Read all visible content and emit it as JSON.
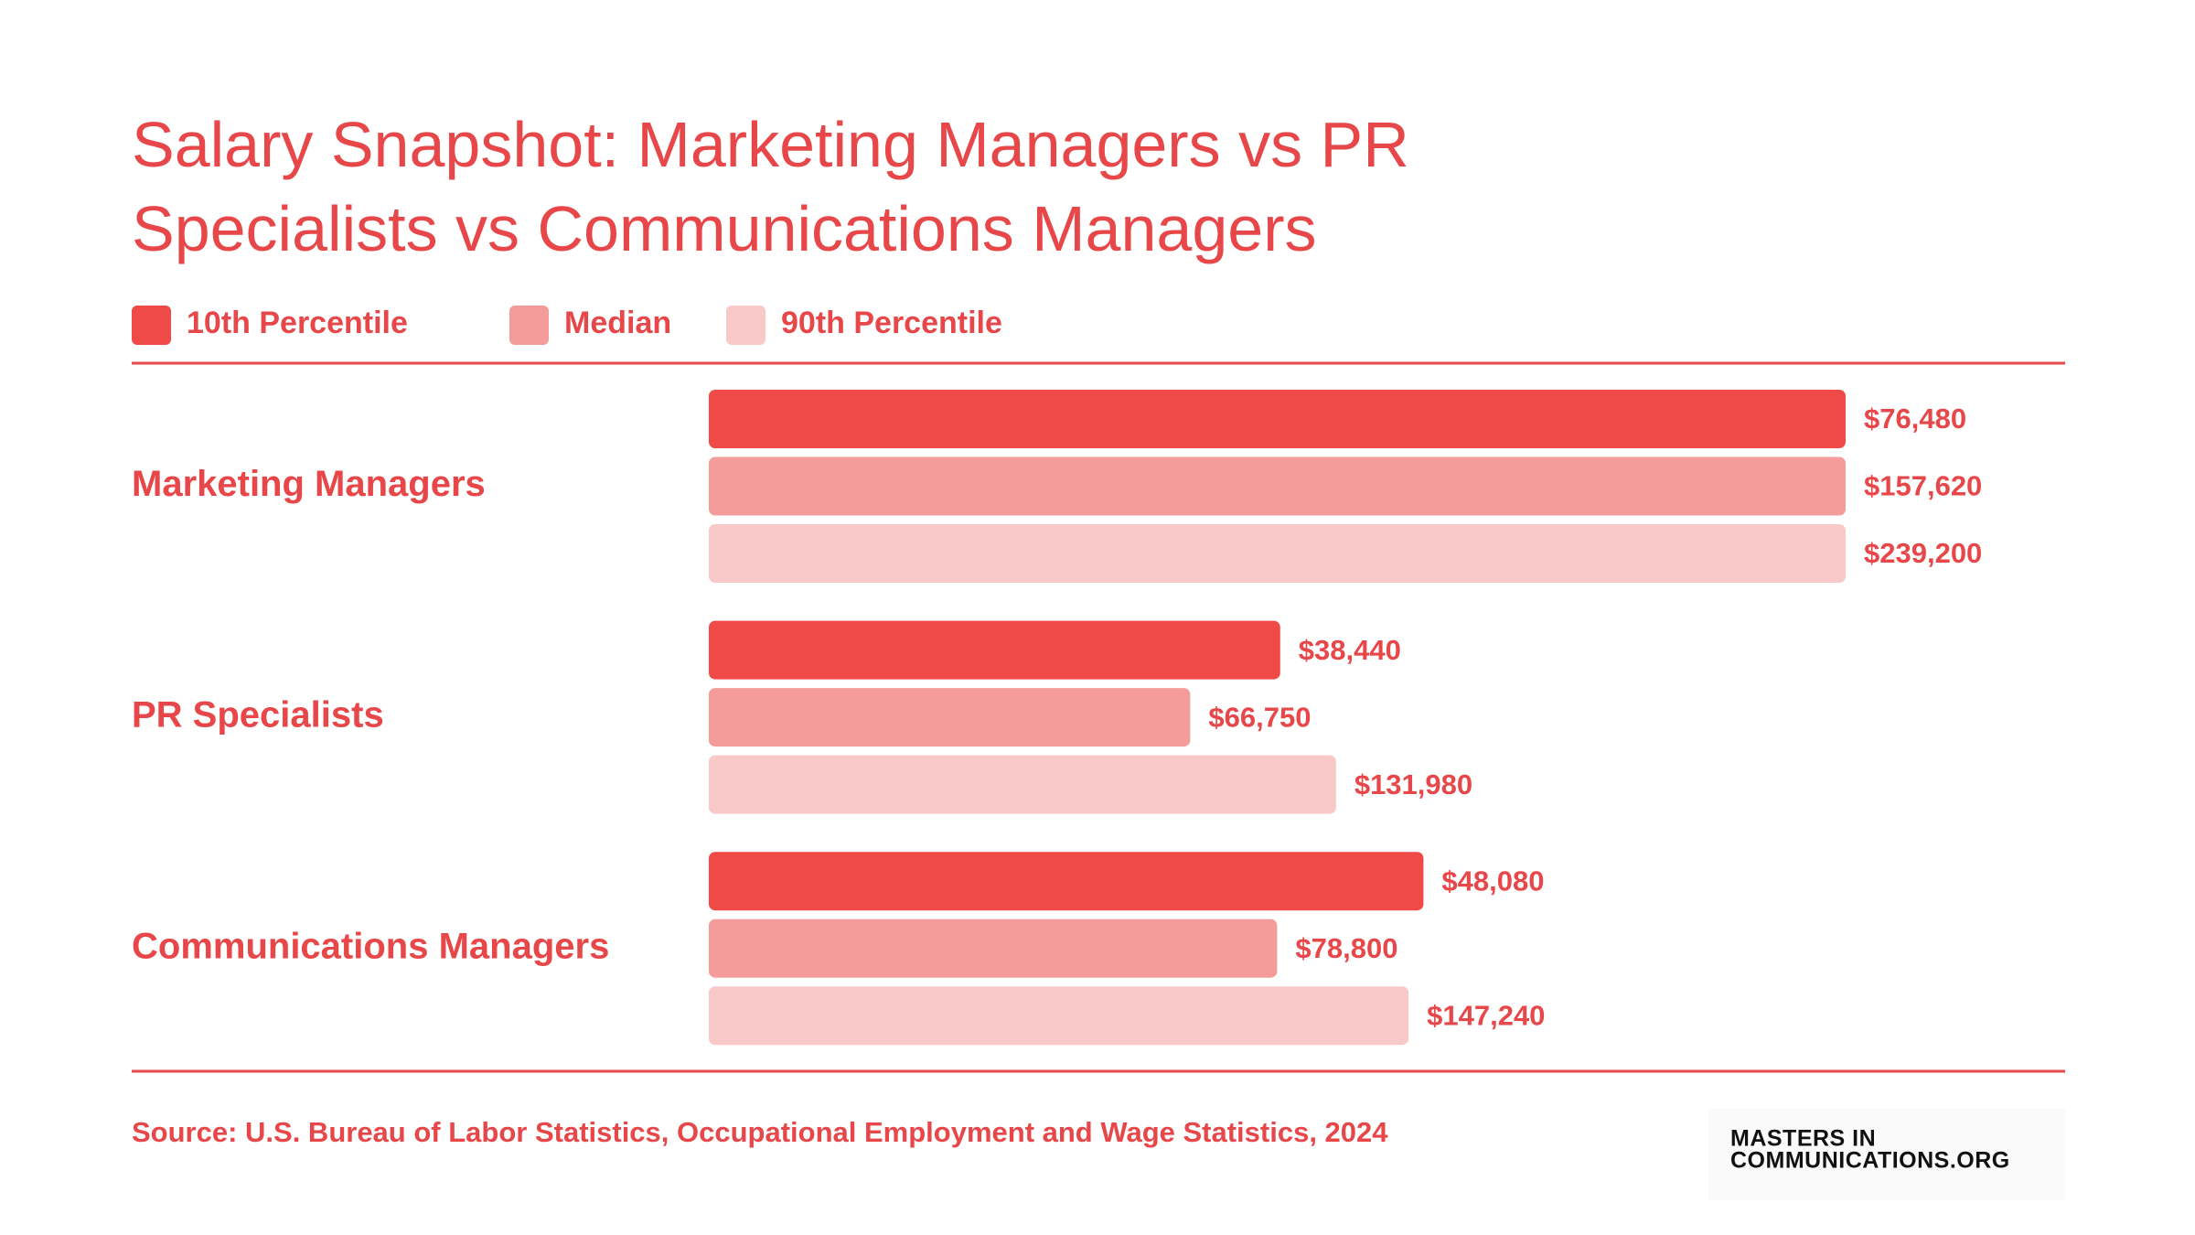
{
  "chart_data": {
    "type": "bar",
    "orientation": "horizontal",
    "title": "Salary Snapshot: Marketing Managers vs PR Specialists vs Communications Managers",
    "categories": [
      "Marketing Managers",
      "PR Specialists",
      "Communications Managers"
    ],
    "series": [
      {
        "name": "10th Percentile",
        "color": "#ef4a48",
        "values": [
          76480,
          38440,
          48080
        ],
        "value_labels": [
          "$76,480",
          "$38,440",
          "$48,080"
        ]
      },
      {
        "name": "Median",
        "color": "#f49c9a",
        "values": [
          157620,
          66750,
          78800
        ],
        "value_labels": [
          "$157,620",
          "$66,750",
          "$78,800"
        ]
      },
      {
        "name": "90th Percentile",
        "color": "#f9c8c8",
        "values": [
          239200,
          131980,
          147240
        ],
        "value_labels": [
          "$239,200",
          "$131,980",
          "$147,240"
        ]
      }
    ],
    "legend": "top-left",
    "source": "Source: U.S. Bureau of Labor Statistics, Occupational Employment and Wage Statistics, 2024"
  },
  "logo": {
    "line1": "MASTERS IN",
    "line2": "COMMUNICATIONS.ORG"
  }
}
